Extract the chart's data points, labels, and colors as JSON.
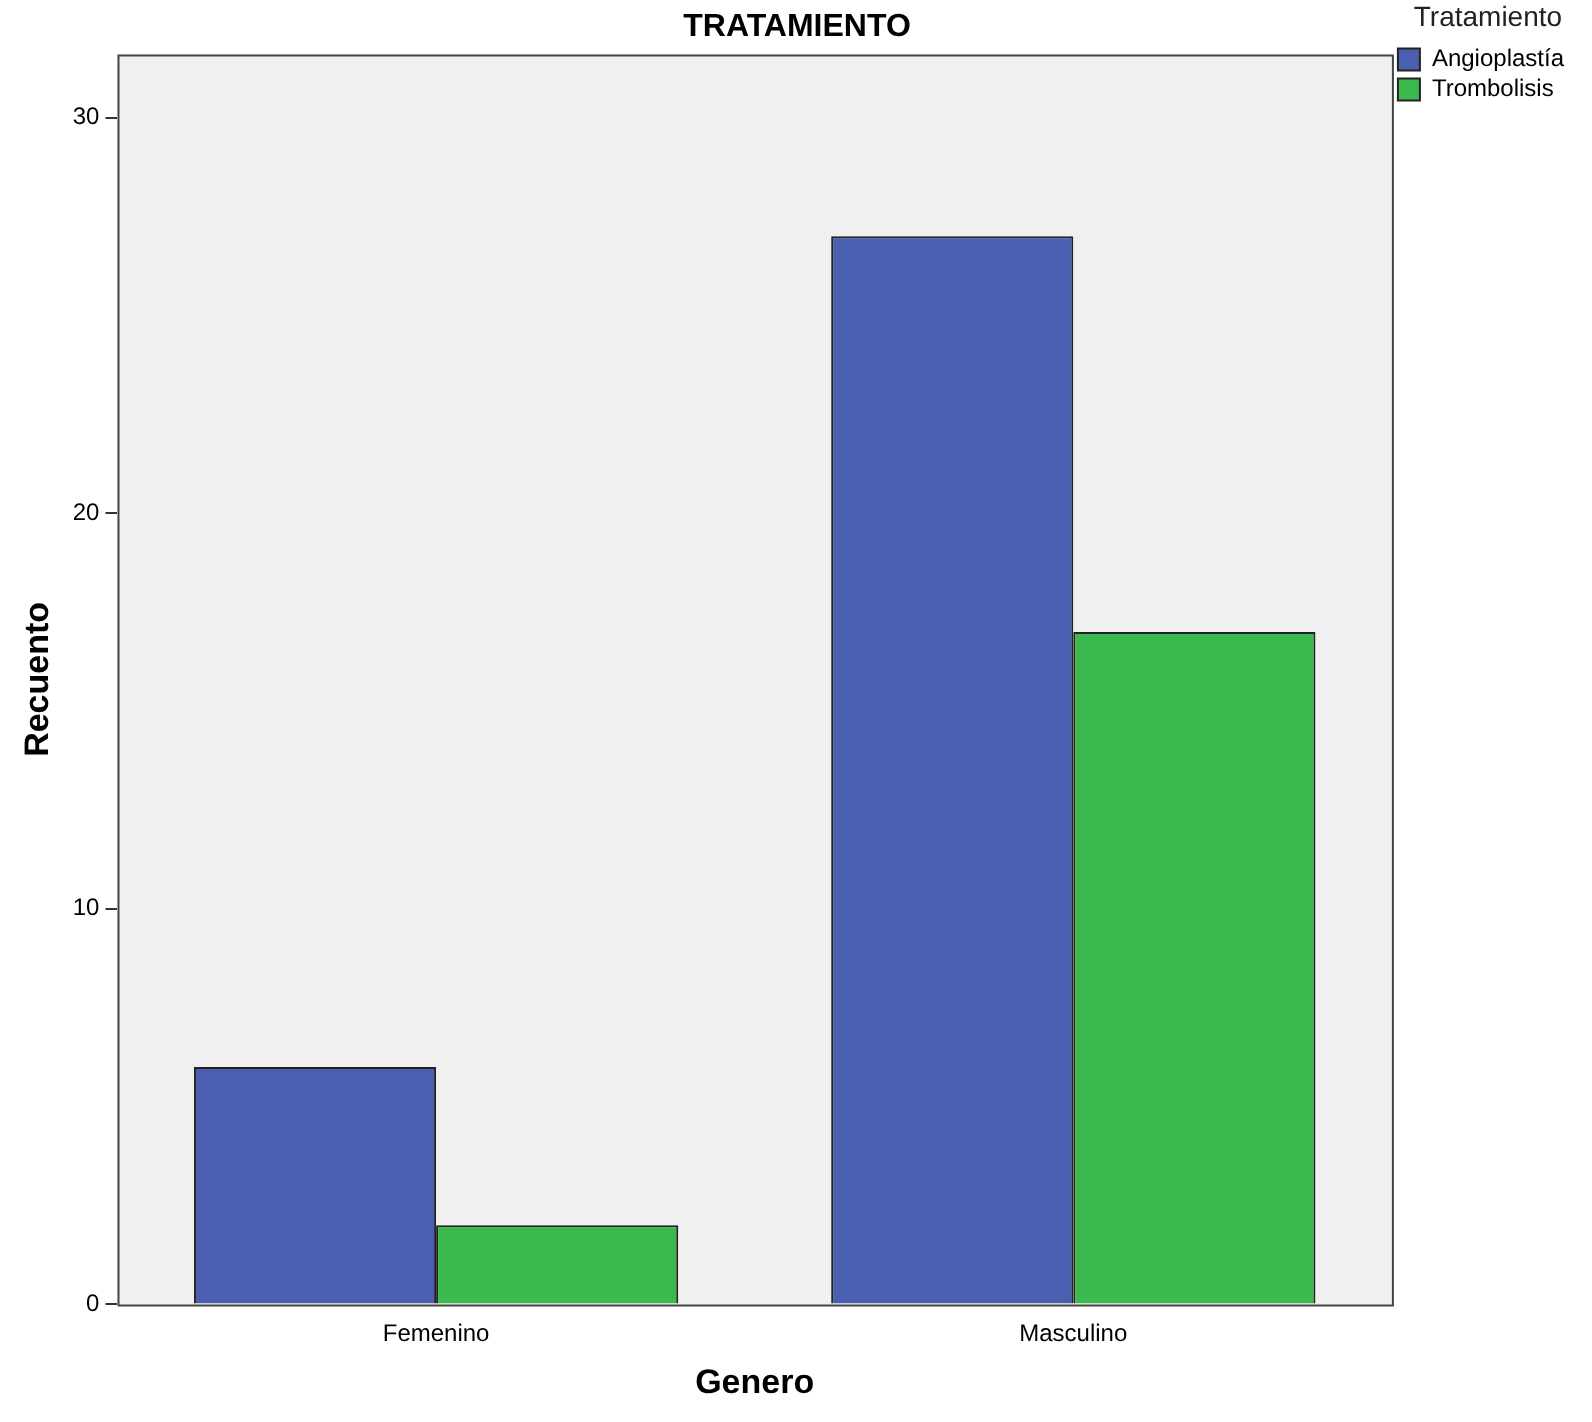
{
  "chart_data": {
    "type": "bar",
    "title": "TRATAMIENTO",
    "xlabel": "Genero",
    "ylabel": "Recuento",
    "legend_title": "Tratamiento",
    "categories": [
      "Femenino",
      "Masculino"
    ],
    "series": [
      {
        "name": "Angioplastía",
        "color": "#4a5fb0",
        "values": [
          6,
          27
        ]
      },
      {
        "name": "Trombolisis",
        "color": "#3cb94e",
        "values": [
          2,
          17
        ]
      }
    ],
    "ylim": [
      0,
      31.6
    ],
    "yticks": [
      0,
      10,
      20,
      30
    ],
    "grid": false,
    "legend": "top right"
  }
}
